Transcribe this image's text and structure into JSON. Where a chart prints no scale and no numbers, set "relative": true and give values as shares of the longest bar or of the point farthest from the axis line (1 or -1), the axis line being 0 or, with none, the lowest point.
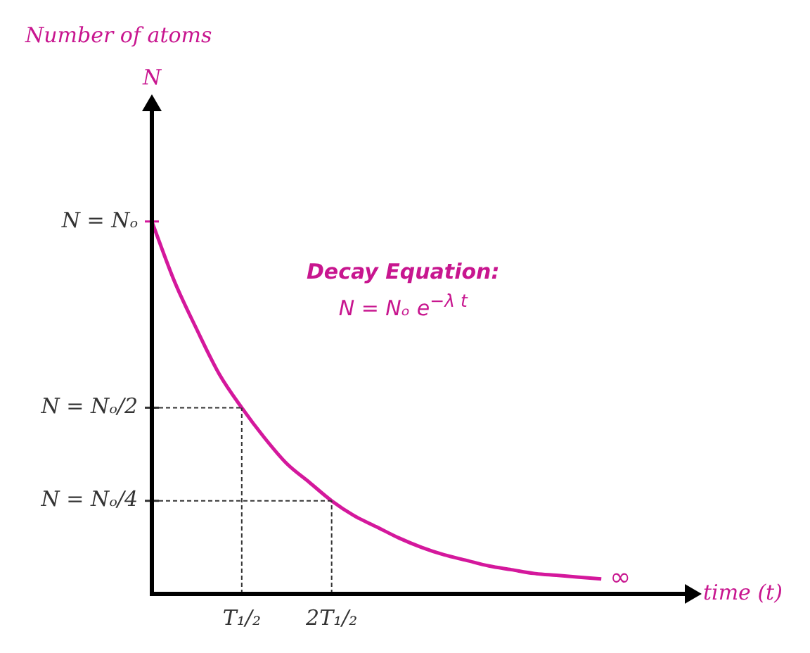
{
  "chart_data": {
    "type": "line",
    "title": "Number of atoms",
    "xlabel": "time (t)",
    "relative": true,
    "categories": [
      null,
      null,
      null,
      null,
      "T₁/₂",
      null,
      null,
      null,
      "2T₁/₂",
      null,
      null,
      null,
      null,
      null,
      null,
      null,
      null,
      null,
      null,
      null,
      null
    ],
    "series": [
      {
        "color": "#d4189c",
        "values": [
          1,
          0.84,
          0.71,
          0.59,
          0.5,
          0.42,
          0.35,
          0.3,
          0.25,
          0.21,
          0.18,
          0.15,
          0.125,
          0.105,
          0.09,
          0.075,
          0.065,
          0.055,
          0.05,
          0.045,
          0.04
        ]
      }
    ],
    "ref_lines": [
      {
        "axis": "y",
        "value": 1,
        "label": "N = Nₒ",
        "color": "#d4189c"
      },
      {
        "axis": "y",
        "value": 0.5,
        "label": "N = Nₒ/2",
        "line_style": "dashed",
        "color": "#333333"
      },
      {
        "axis": "y",
        "value": 0.25,
        "label": "N = Nₒ/4",
        "line_style": "dashed",
        "color": "#333333"
      },
      {
        "axis": "x",
        "value": "T₁/₂",
        "line_style": "dashed",
        "color": "#333333"
      },
      {
        "axis": "x",
        "value": "2T₁/₂",
        "line_style": "dashed",
        "color": "#333333"
      }
    ],
    "annotations": [
      "Decay Equation:",
      "N = Nₒ e$^{−λ t}$",
      "∞",
      "N"
    ],
    "grid": false,
    "legend": false,
    "marker": "none",
    "line_style": "solid"
  }
}
